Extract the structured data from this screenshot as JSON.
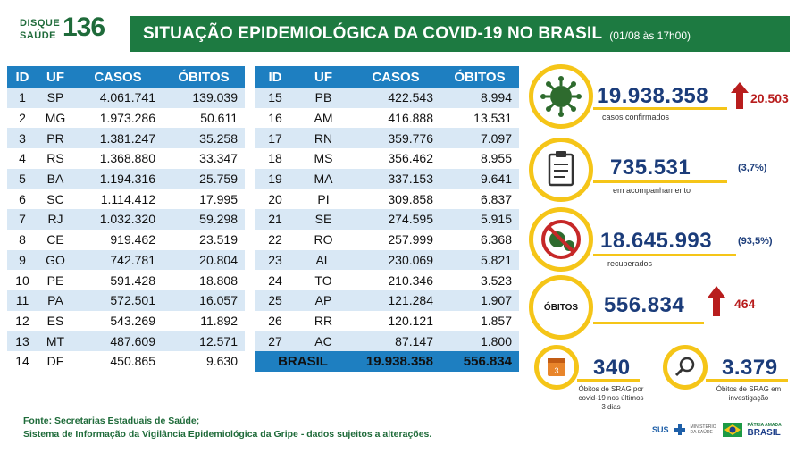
{
  "header": {
    "logo_line1": "DISQUE",
    "logo_line2": "SAÚDE",
    "logo_number": "136",
    "title": "SITUAÇÃO EPIDEMIOLÓGICA DA COVID-19 NO BRASIL",
    "date": "(01/08 às 17h00)"
  },
  "table_headers": [
    "ID",
    "UF",
    "CASOS",
    "ÓBITOS"
  ],
  "left_rows": [
    [
      "1",
      "SP",
      "4.061.741",
      "139.039"
    ],
    [
      "2",
      "MG",
      "1.973.286",
      "50.611"
    ],
    [
      "3",
      "PR",
      "1.381.247",
      "35.258"
    ],
    [
      "4",
      "RS",
      "1.368.880",
      "33.347"
    ],
    [
      "5",
      "BA",
      "1.194.316",
      "25.759"
    ],
    [
      "6",
      "SC",
      "1.114.412",
      "17.995"
    ],
    [
      "7",
      "RJ",
      "1.032.320",
      "59.298"
    ],
    [
      "8",
      "CE",
      "919.462",
      "23.519"
    ],
    [
      "9",
      "GO",
      "742.781",
      "20.804"
    ],
    [
      "10",
      "PE",
      "591.428",
      "18.808"
    ],
    [
      "11",
      "PA",
      "572.501",
      "16.057"
    ],
    [
      "12",
      "ES",
      "543.269",
      "11.892"
    ],
    [
      "13",
      "MT",
      "487.609",
      "12.571"
    ],
    [
      "14",
      "DF",
      "450.865",
      "9.630"
    ]
  ],
  "right_rows": [
    [
      "15",
      "PB",
      "422.543",
      "8.994"
    ],
    [
      "16",
      "AM",
      "416.888",
      "13.531"
    ],
    [
      "17",
      "RN",
      "359.776",
      "7.097"
    ],
    [
      "18",
      "MS",
      "356.462",
      "8.955"
    ],
    [
      "19",
      "MA",
      "337.153",
      "9.641"
    ],
    [
      "20",
      "PI",
      "309.858",
      "6.837"
    ],
    [
      "21",
      "SE",
      "274.595",
      "5.915"
    ],
    [
      "22",
      "RO",
      "257.999",
      "6.368"
    ],
    [
      "23",
      "AL",
      "230.069",
      "5.821"
    ],
    [
      "24",
      "TO",
      "210.346",
      "3.523"
    ],
    [
      "25",
      "AP",
      "121.284",
      "1.907"
    ],
    [
      "26",
      "RR",
      "120.121",
      "1.857"
    ],
    [
      "27",
      "AC",
      "87.147",
      "1.800"
    ]
  ],
  "total_row": {
    "label": "BRASIL",
    "cases": "19.938.358",
    "deaths": "556.834"
  },
  "stats": {
    "confirmed": {
      "value": "19.938.358",
      "label": "casos confirmados",
      "delta": "20.503"
    },
    "monitoring": {
      "value": "735.531",
      "label": "em acompanhamento",
      "pct": "(3,7%)"
    },
    "recovered": {
      "value": "18.645.993",
      "label": "recuperados",
      "pct": "(93,5%)"
    },
    "deaths": {
      "badge": "ÓBITOS",
      "value": "556.834",
      "delta": "464"
    },
    "srag_deaths": {
      "value": "340",
      "label_line1": "Óbitos de SRAG por",
      "label_line2": "covid-19 nos últimos",
      "label_line3": "3 dias",
      "calendar_number": "3"
    },
    "investigation": {
      "value": "3.379",
      "label_line1": "Óbitos de SRAG em",
      "label_line2": "investigação"
    }
  },
  "footer": {
    "line1": "Fonte: Secretarias Estaduais de Saúde;",
    "line2": "Sistema de Informação da Vigilância Epidemiológica da Gripe - dados sujeitos a alterações."
  },
  "logos": {
    "sus": "SUS",
    "ministry": "MINISTÉRIO DA SAÚDE",
    "gov_line1": "PÁTRIA AMADA",
    "gov_line2": "BRASIL"
  },
  "colors": {
    "green": "#1d7a41",
    "blue": "#1e7fc1",
    "light_blue": "#d9e8f5",
    "navy": "#1b3c7a",
    "yellow": "#f5c518",
    "red": "#b81d1d"
  }
}
